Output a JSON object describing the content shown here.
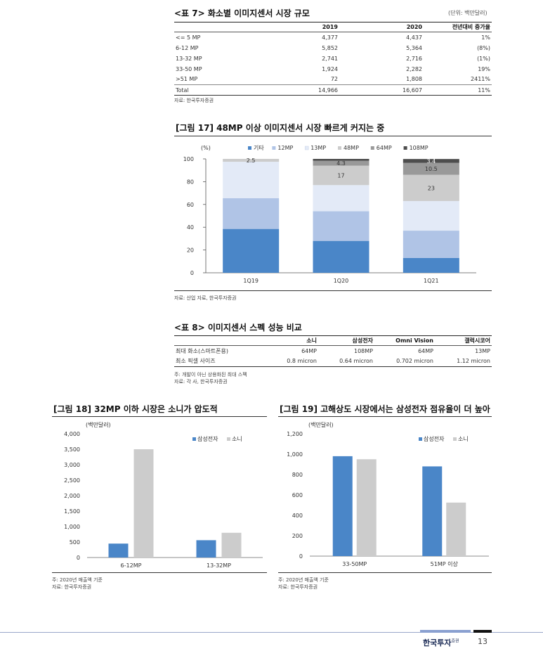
{
  "table7": {
    "title": "<표 7> 화소별 이미지센서 시장 규모",
    "unit": "(단위: 백만달러)",
    "headers": [
      "",
      "2019",
      "2020",
      "전년대비 증가율"
    ],
    "rows": [
      [
        "<= 5 MP",
        "4,377",
        "4,437",
        "1%"
      ],
      [
        "6-12 MP",
        "5,852",
        "5,364",
        "(8%)"
      ],
      [
        "13-32 MP",
        "2,741",
        "2,716",
        "(1%)"
      ],
      [
        "33-50 MP",
        "1,924",
        "2,282",
        "19%"
      ],
      [
        ">51 MP",
        "72",
        "1,808",
        "2411%"
      ],
      [
        "Total",
        "14,966",
        "16,607",
        "11%"
      ]
    ],
    "source": "자료: 한국투자증권"
  },
  "fig17": {
    "title": "[그림 17] 48MP 이상 이미지센서 시장 빠르게 커지는 중",
    "source": "자료: 산업 자료, 한국투자증권",
    "chart_data": {
      "type": "bar",
      "stacked": true,
      "categories": [
        "1Q19",
        "1Q20",
        "1Q21"
      ],
      "ylabel": "(%)",
      "ylim": [
        0,
        100
      ],
      "yticks": [
        0,
        20,
        40,
        60,
        80,
        100
      ],
      "legend": "top",
      "series": [
        {
          "name": "기타",
          "color": "#4a86c8",
          "values": [
            38.5,
            28,
            13
          ]
        },
        {
          "name": "12MP",
          "color": "#b0c4e6",
          "values": [
            27,
            26,
            24
          ]
        },
        {
          "name": "13MP",
          "color": "#e3eaf7",
          "values": [
            32,
            23,
            26
          ]
        },
        {
          "name": "48MP",
          "color": "#cccccc",
          "values": [
            2.5,
            17,
            23
          ]
        },
        {
          "name": "64MP",
          "color": "#999999",
          "values": [
            0,
            4.3,
            10.5
          ]
        },
        {
          "name": "108MP",
          "color": "#4d4d4d",
          "values": [
            0,
            1.7,
            3.4
          ]
        }
      ],
      "labels": [
        {
          "cat": 0,
          "series": 3,
          "text": "2.5"
        },
        {
          "cat": 1,
          "series": 3,
          "text": "17"
        },
        {
          "cat": 1,
          "series": 4,
          "text": "4.3"
        },
        {
          "cat": 2,
          "series": 3,
          "text": "23"
        },
        {
          "cat": 2,
          "series": 4,
          "text": "10.5"
        },
        {
          "cat": 2,
          "series": 5,
          "text": "3.4"
        }
      ]
    }
  },
  "table8": {
    "title": "<표 8> 이미지센서 스펙 성능 비교",
    "headers": [
      "",
      "소니",
      "삼성전자",
      "Omni Vision",
      "갤럭시코어"
    ],
    "rows": [
      [
        "최대 화소(스마트폰용)",
        "64MP",
        "108MP",
        "64MP",
        "13MP"
      ],
      [
        "최소 픽셀 사이즈",
        "0.8 micron",
        "0.64 micron",
        "0.702 micron",
        "1.12 micron"
      ]
    ],
    "note": "주: 개발이 아닌 상용화된 최대 스펙",
    "source": "자료: 각 사, 한국투자증권"
  },
  "fig18": {
    "title": "[그림 18] 32MP 이하 시장은 소니가 압도적",
    "note": "주: 2020년 매출액 기준",
    "source": "자료: 한국투자증권",
    "chart_data": {
      "type": "bar",
      "categories": [
        "6-12MP",
        "13-32MP"
      ],
      "ylabel": "(백만달러)",
      "ylim": [
        0,
        4000
      ],
      "yticks": [
        0,
        500,
        1000,
        1500,
        2000,
        2500,
        3000,
        3500,
        4000
      ],
      "ytick_labels": [
        "0",
        "500",
        "1,000",
        "1,500",
        "2,000",
        "2,500",
        "3,000",
        "3,500",
        "4,000"
      ],
      "legend": "top-right",
      "series": [
        {
          "name": "삼성전자",
          "color": "#4a86c8",
          "values": [
            450,
            560
          ]
        },
        {
          "name": "소니",
          "color": "#cccccc",
          "values": [
            3500,
            800
          ]
        }
      ]
    }
  },
  "fig19": {
    "title": "[그림 19] 고해상도 시장에서는 삼성전자 점유율이 더 높아",
    "note": "주: 2020년 매출액 기준",
    "source": "자료: 한국투자증권",
    "chart_data": {
      "type": "bar",
      "categories": [
        "33-50MP",
        "51MP 이상"
      ],
      "ylabel": "(백만달러)",
      "ylim": [
        0,
        1200
      ],
      "yticks": [
        0,
        200,
        400,
        600,
        800,
        1000,
        1200
      ],
      "ytick_labels": [
        "0",
        "200",
        "400",
        "600",
        "800",
        "1,000",
        "1,200"
      ],
      "legend": "top-right",
      "series": [
        {
          "name": "삼성전자",
          "color": "#4a86c8",
          "values": [
            980,
            880
          ]
        },
        {
          "name": "소니",
          "color": "#cccccc",
          "values": [
            950,
            525
          ]
        }
      ]
    }
  },
  "footer": {
    "logo": "한국투자",
    "logo_sub": "증권",
    "page": "13"
  }
}
